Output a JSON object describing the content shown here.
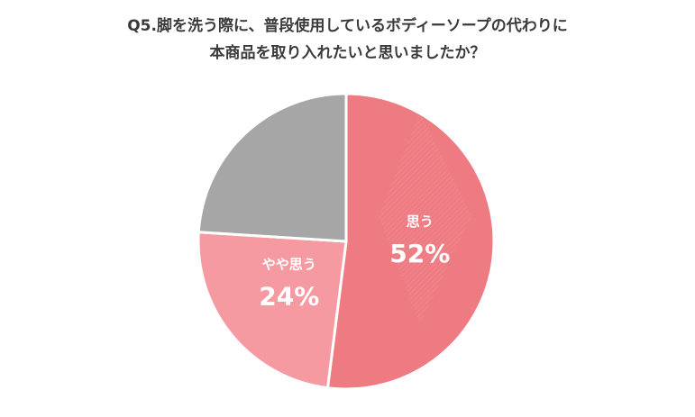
{
  "chart_data": {
    "type": "pie",
    "title_lines": [
      "Q5.脚を洗う際に、普段使用しているボディーソープの代わりに",
      "本商品を取り入れたいと思いましたか？"
    ],
    "slices": [
      {
        "label": "思う",
        "percent_label": "52%",
        "value": 52,
        "color": "#ee7a82",
        "labeled": true
      },
      {
        "label": "やや思う",
        "percent_label": "24%",
        "value": 24,
        "color": "#f59aa0",
        "labeled": true
      },
      {
        "label": "",
        "percent_label": "",
        "value": 24,
        "color": "#a6a6a6",
        "labeled": false
      }
    ],
    "start_angle_deg": 0,
    "direction": "clockwise"
  }
}
